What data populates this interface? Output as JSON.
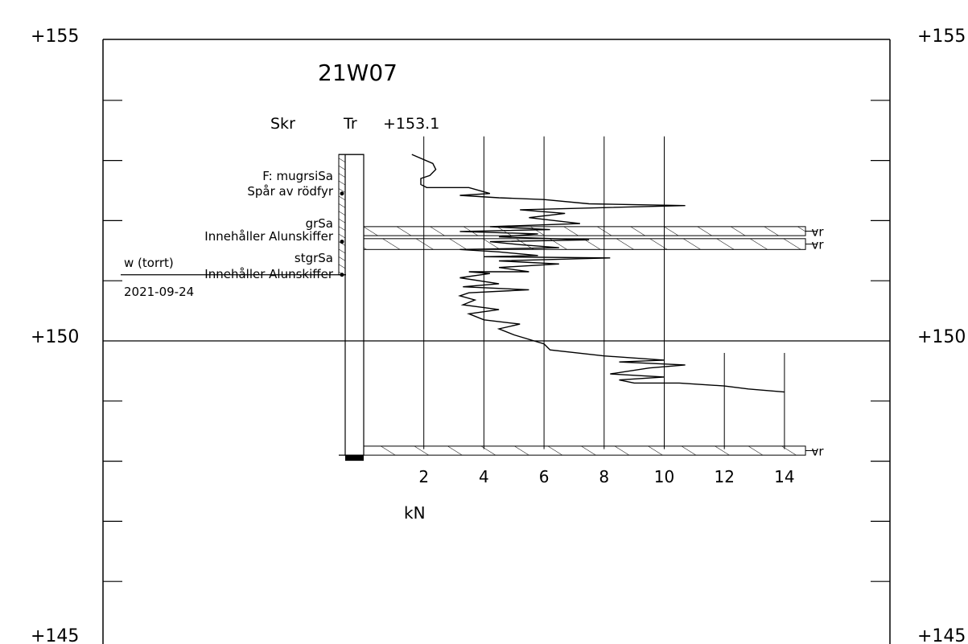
{
  "title": "21W07",
  "column_headers": {
    "skr": "Skr",
    "tr": "Tr",
    "top_level": "+153.1"
  },
  "elevation_labels": {
    "left": [
      "+155",
      "+150",
      "+145"
    ],
    "right": [
      "+155",
      "+150",
      "+145"
    ]
  },
  "soil_layers": [
    {
      "lines": [
        "F: mugrsiSa",
        "Spår av rödfyr"
      ],
      "top": 153.1,
      "bottom": 152.45
    },
    {
      "lines": [
        "grSa",
        "Innehåller Alunskiffer"
      ],
      "top": 152.45,
      "bottom": 151.65
    },
    {
      "lines": [
        "stgrSa",
        "Innehåller Alunskiffer"
      ],
      "top": 151.65,
      "bottom": 151.1
    }
  ],
  "groundwater": {
    "label": "w (torrt)",
    "date": "2021-09-24",
    "level": 151.1
  },
  "vr_zones": [
    {
      "label": "vr",
      "top": 151.9,
      "bottom": 151.75
    },
    {
      "label": "vr",
      "top": 151.7,
      "bottom": 151.52
    },
    {
      "label": "vr",
      "top": 148.25,
      "bottom": 148.1
    }
  ],
  "axis": {
    "unit": "kN",
    "ticks": [
      "2",
      "4",
      "6",
      "8",
      "10",
      "12",
      "14"
    ]
  },
  "chart_data": {
    "type": "line",
    "xlabel": "kN",
    "xlim": [
      0,
      15
    ],
    "ylim": [
      145,
      155
    ],
    "x_ticks": [
      2,
      4,
      6,
      8,
      10,
      12,
      14
    ],
    "grid": true,
    "series": [
      {
        "x": [
          1.6,
          2.3,
          2.4,
          2.2,
          1.9,
          1.9,
          2.1,
          3.5,
          4.2,
          3.2,
          4.5,
          6.0,
          7.5,
          10.7,
          5.2,
          6.7,
          5.5,
          7.2,
          4.2,
          6.2,
          3.2,
          5.8,
          4.5,
          7.5,
          4.2,
          5.2,
          6.5,
          3.2,
          4.5,
          5.8,
          4.0,
          8.2,
          4.5,
          6.5,
          4.5,
          5.5,
          3.5,
          4.2,
          3.2,
          4.5,
          3.3,
          5.5,
          3.5,
          3.2,
          3.7,
          3.3,
          4.5,
          3.5,
          4.0,
          5.2,
          4.5,
          5.0,
          6.0,
          6.2,
          8.0,
          10.0,
          8.5,
          10.7,
          9.5,
          8.2,
          10.0,
          8.5,
          9.0,
          10.5,
          12.0,
          12.8,
          14.0
        ],
        "y": [
          153.1,
          152.95,
          152.85,
          152.75,
          152.7,
          152.6,
          152.55,
          152.55,
          152.45,
          152.42,
          152.38,
          152.35,
          152.28,
          152.25,
          152.18,
          152.12,
          152.05,
          151.95,
          151.9,
          151.85,
          151.82,
          151.78,
          151.73,
          151.68,
          151.65,
          151.6,
          151.55,
          151.52,
          151.48,
          151.42,
          151.4,
          151.38,
          151.33,
          151.28,
          151.22,
          151.15,
          151.15,
          151.12,
          151.05,
          150.95,
          150.9,
          150.85,
          150.8,
          150.75,
          150.68,
          150.6,
          150.52,
          150.45,
          150.35,
          150.28,
          150.2,
          150.1,
          149.95,
          149.85,
          149.75,
          149.68,
          149.65,
          149.6,
          149.55,
          149.45,
          149.4,
          149.35,
          149.3,
          149.3,
          149.25,
          149.2,
          149.15
        ]
      }
    ]
  }
}
